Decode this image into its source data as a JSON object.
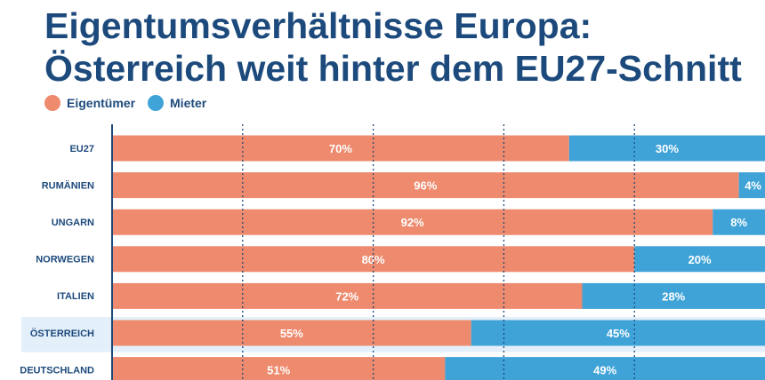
{
  "title_line1": "Eigentumsverhältnisse Europa:",
  "title_line2": "Österreich weit hinter dem EU27-Schnitt",
  "colors": {
    "title": "#1d4a7c",
    "owner": "#ee8a6d",
    "renter": "#3fa3d8",
    "highlight_row": "#e4f0f9",
    "axis": "#1d4a7c",
    "grid": "#1d4a7c"
  },
  "chart_data": {
    "type": "bar",
    "orientation": "horizontal",
    "stacked": true,
    "categories": [
      "EU27",
      "RUMÄNIEN",
      "UNGARN",
      "NORWEGEN",
      "ITALIEN",
      "ÖSTERREICH",
      "DEUTSCHLAND"
    ],
    "series": [
      {
        "name": "Eigentümer",
        "values": [
          70,
          96,
          92,
          80,
          72,
          55,
          51
        ]
      },
      {
        "name": "Mieter",
        "values": [
          30,
          4,
          8,
          20,
          28,
          45,
          49
        ]
      }
    ],
    "labels": [
      [
        "70%",
        "96%",
        "92%",
        "80%",
        "72%",
        "55%",
        "51%"
      ],
      [
        "30%",
        "4%",
        "8%",
        "20%",
        "28%",
        "45%",
        "49%"
      ]
    ],
    "highlight_category": "ÖSTERREICH",
    "xlim": [
      0,
      100
    ],
    "grid": "vertical dotted",
    "legend_position": "top-left"
  }
}
